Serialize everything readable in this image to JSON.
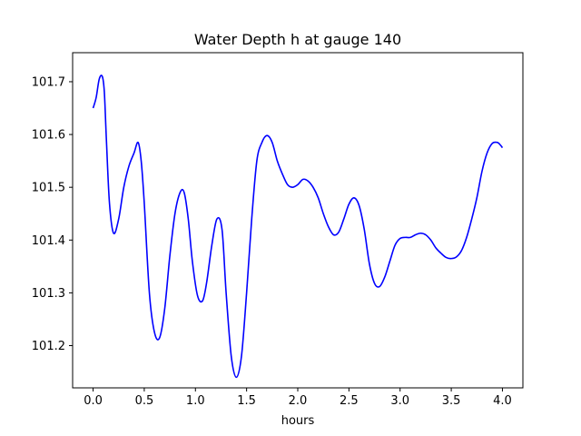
{
  "chart_data": {
    "type": "line",
    "title": "Water Depth h at gauge 140",
    "xlabel": "hours",
    "ylabel": "",
    "xlim": [
      -0.2,
      4.2
    ],
    "ylim": [
      101.12,
      101.755
    ],
    "x_ticks": [
      0.0,
      0.5,
      1.0,
      1.5,
      2.0,
      2.5,
      3.0,
      3.5,
      4.0
    ],
    "x_tick_labels": [
      "0.0",
      "0.5",
      "1.0",
      "1.5",
      "2.0",
      "2.5",
      "3.0",
      "3.5",
      "4.0"
    ],
    "y_ticks": [
      101.2,
      101.3,
      101.4,
      101.5,
      101.6,
      101.7
    ],
    "y_tick_labels": [
      "101.2",
      "101.3",
      "101.4",
      "101.5",
      "101.6",
      "101.7"
    ],
    "grid": false,
    "series": [
      {
        "color": "#0000ff",
        "x": [
          0.0,
          0.03,
          0.06,
          0.09,
          0.11,
          0.13,
          0.16,
          0.2,
          0.25,
          0.3,
          0.35,
          0.4,
          0.44,
          0.47,
          0.5,
          0.55,
          0.6,
          0.65,
          0.7,
          0.75,
          0.8,
          0.85,
          0.89,
          0.93,
          0.97,
          1.02,
          1.07,
          1.11,
          1.16,
          1.21,
          1.26,
          1.3,
          1.35,
          1.4,
          1.45,
          1.5,
          1.55,
          1.6,
          1.65,
          1.7,
          1.75,
          1.8,
          1.85,
          1.9,
          1.95,
          2.0,
          2.05,
          2.1,
          2.15,
          2.2,
          2.25,
          2.3,
          2.35,
          2.4,
          2.45,
          2.5,
          2.55,
          2.6,
          2.65,
          2.7,
          2.75,
          2.8,
          2.85,
          2.9,
          2.95,
          3.0,
          3.05,
          3.1,
          3.15,
          3.2,
          3.25,
          3.3,
          3.35,
          3.4,
          3.45,
          3.5,
          3.55,
          3.6,
          3.65,
          3.7,
          3.75,
          3.8,
          3.85,
          3.9,
          3.95,
          3.98,
          4.0
        ],
        "y": [
          101.65,
          101.67,
          101.705,
          101.71,
          101.68,
          101.59,
          101.47,
          101.413,
          101.44,
          101.5,
          101.54,
          101.565,
          101.585,
          101.55,
          101.47,
          101.3,
          101.225,
          101.215,
          101.27,
          101.37,
          101.45,
          101.49,
          101.49,
          101.44,
          101.36,
          101.295,
          101.285,
          101.32,
          101.39,
          101.44,
          101.42,
          101.3,
          101.18,
          101.14,
          101.18,
          101.3,
          101.44,
          101.55,
          101.585,
          101.598,
          101.585,
          101.55,
          101.525,
          101.505,
          101.5,
          101.505,
          101.515,
          101.512,
          101.5,
          101.48,
          101.45,
          101.425,
          101.41,
          101.415,
          101.44,
          101.468,
          101.48,
          101.465,
          101.42,
          101.355,
          101.318,
          101.312,
          101.33,
          101.36,
          101.39,
          101.403,
          101.405,
          101.405,
          101.41,
          101.413,
          101.41,
          101.4,
          101.385,
          101.375,
          101.367,
          101.365,
          101.368,
          101.38,
          101.405,
          101.44,
          101.48,
          101.53,
          101.565,
          101.583,
          101.585,
          101.58,
          101.575
        ]
      }
    ]
  }
}
